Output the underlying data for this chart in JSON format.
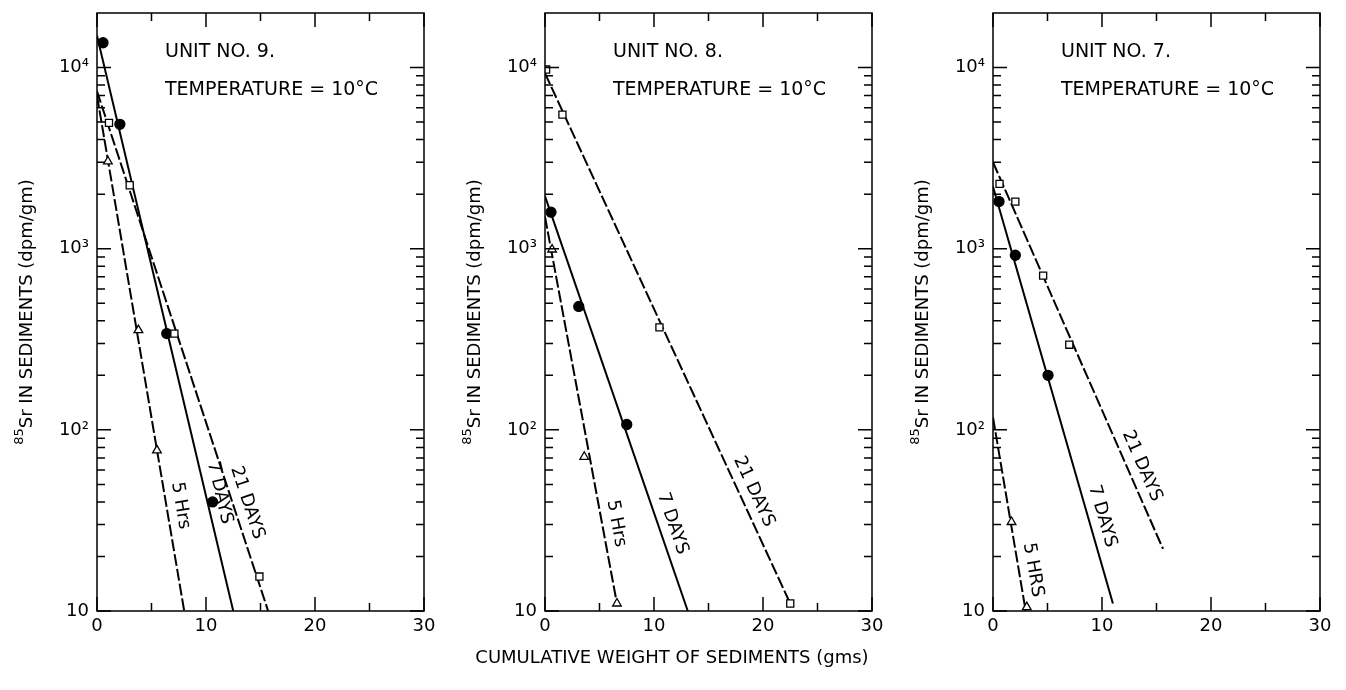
{
  "chart_data": [
    {
      "type": "scatter",
      "title": "UNIT NO. 9.",
      "subtitle": "TEMPERATURE = 10°C",
      "ylabel": "$^{85}$Sr IN SEDIMENTS (dpm/gm)",
      "log": "y",
      "grid": false,
      "legend": false,
      "xlim": [
        0,
        30
      ],
      "ylim": [
        10,
        20000
      ],
      "xticks": [
        0,
        {
          "value": 5,
          "label": null
        },
        10,
        {
          "value": 15,
          "label": null
        },
        20,
        {
          "value": 25,
          "label": null
        },
        30
      ],
      "yticks": [
        {
          "value": 10,
          "label": "10"
        },
        {
          "value": 20,
          "label": null
        },
        {
          "value": 30,
          "label": null
        },
        {
          "value": 40,
          "label": null
        },
        {
          "value": 50,
          "label": null
        },
        {
          "value": 60,
          "label": null
        },
        {
          "value": 70,
          "label": null
        },
        {
          "value": 80,
          "label": null
        },
        {
          "value": 90,
          "label": null
        },
        {
          "value": 100,
          "label": "10²"
        },
        {
          "value": 200,
          "label": null
        },
        {
          "value": 300,
          "label": null
        },
        {
          "value": 400,
          "label": null
        },
        {
          "value": 500,
          "label": null
        },
        {
          "value": 600,
          "label": null
        },
        {
          "value": 700,
          "label": null
        },
        {
          "value": 800,
          "label": null
        },
        {
          "value": 900,
          "label": null
        },
        {
          "value": 1000,
          "label": "10³"
        },
        {
          "value": 2000,
          "label": null
        },
        {
          "value": 3000,
          "label": null
        },
        {
          "value": 4000,
          "label": null
        },
        {
          "value": 5000,
          "label": null
        },
        {
          "value": 6000,
          "label": null
        },
        {
          "value": 7000,
          "label": null
        },
        {
          "value": 8000,
          "label": null
        },
        {
          "value": 9000,
          "label": null
        },
        {
          "value": 10000,
          "label": "10⁴"
        }
      ],
      "series": [
        {
          "type": "line",
          "name": "21 DAYS",
          "color": "#000000",
          "marker": "none",
          "line_style": "dashed",
          "x": [
            0,
            15.7
          ],
          "values": [
            7400,
            10
          ]
        },
        {
          "type": "line",
          "name": "7 DAYS",
          "color": "#000000",
          "marker": "none",
          "line_style": "solid",
          "x": [
            0,
            12.5
          ],
          "values": [
            15000,
            10
          ]
        },
        {
          "type": "line",
          "name": "5 Hrs",
          "color": "#000000",
          "marker": "none",
          "line_style": "dashed",
          "x": [
            0,
            8.0
          ],
          "values": [
            7000,
            10
          ]
        },
        {
          "color": "#000000",
          "marker": "square",
          "x": [
            1.1,
            3.0,
            7.1,
            14.9
          ],
          "values": [
            4950,
            2240,
            340,
            15.5
          ]
        },
        {
          "color": "#000000",
          "marker": "circle",
          "x": [
            0.55,
            2.1,
            6.4,
            10.6
          ],
          "values": [
            13700,
            4860,
            340,
            40
          ]
        },
        {
          "color": "#000000",
          "marker": "triangle",
          "x": [
            1.0,
            3.8,
            5.5
          ],
          "values": [
            3030,
            355,
            77
          ]
        }
      ]
    },
    {
      "type": "scatter",
      "title": "UNIT NO. 8.",
      "subtitle": "TEMPERATURE = 10°C",
      "xlabel": "CUMULATIVE WEIGHT OF SEDIMENTS (gms)",
      "ylabel": "$^{85}$Sr IN SEDIMENTS (dpm/gm)",
      "log": "y",
      "grid": false,
      "legend": false,
      "xlim": [
        0,
        30
      ],
      "ylim": [
        10,
        20000
      ],
      "xticks": [
        0,
        {
          "value": 5,
          "label": null
        },
        10,
        {
          "value": 15,
          "label": null
        },
        20,
        {
          "value": 25,
          "label": null
        },
        30
      ],
      "yticks": [
        {
          "value": 10,
          "label": "10"
        },
        {
          "value": 20,
          "label": null
        },
        {
          "value": 30,
          "label": null
        },
        {
          "value": 40,
          "label": null
        },
        {
          "value": 50,
          "label": null
        },
        {
          "value": 60,
          "label": null
        },
        {
          "value": 70,
          "label": null
        },
        {
          "value": 80,
          "label": null
        },
        {
          "value": 90,
          "label": null
        },
        {
          "value": 100,
          "label": "10²"
        },
        {
          "value": 200,
          "label": null
        },
        {
          "value": 300,
          "label": null
        },
        {
          "value": 400,
          "label": null
        },
        {
          "value": 500,
          "label": null
        },
        {
          "value": 600,
          "label": null
        },
        {
          "value": 700,
          "label": null
        },
        {
          "value": 800,
          "label": null
        },
        {
          "value": 900,
          "label": null
        },
        {
          "value": 1000,
          "label": "10³"
        },
        {
          "value": 2000,
          "label": null
        },
        {
          "value": 3000,
          "label": null
        },
        {
          "value": 4000,
          "label": null
        },
        {
          "value": 5000,
          "label": null
        },
        {
          "value": 6000,
          "label": null
        },
        {
          "value": 7000,
          "label": null
        },
        {
          "value": 8000,
          "label": null
        },
        {
          "value": 9000,
          "label": null
        },
        {
          "value": 10000,
          "label": "10⁴"
        }
      ],
      "series": [
        {
          "type": "line",
          "name": "21 DAYS",
          "color": "#000000",
          "marker": "none",
          "line_style": "dashed",
          "x": [
            0,
            22.5
          ],
          "values": [
            9300,
            11
          ]
        },
        {
          "type": "line",
          "name": "7 DAYS",
          "color": "#000000",
          "marker": "none",
          "line_style": "solid",
          "x": [
            0,
            13.1
          ],
          "values": [
            1950,
            10
          ]
        },
        {
          "type": "line",
          "name": "5 Hrs",
          "color": "#000000",
          "marker": "none",
          "line_style": "dashed",
          "x": [
            0,
            6.6
          ],
          "values": [
            1500,
            11
          ]
        },
        {
          "color": "#000000",
          "marker": "square",
          "x": [
            0.1,
            1.6,
            10.5,
            22.5
          ],
          "values": [
            9750,
            5500,
            368,
            11
          ]
        },
        {
          "color": "#000000",
          "marker": "circle",
          "x": [
            0.55,
            3.1,
            7.5
          ],
          "values": [
            1590,
            480,
            107
          ]
        },
        {
          "color": "#000000",
          "marker": "triangle",
          "x": [
            0.65,
            3.6,
            6.6
          ],
          "values": [
            990,
            71,
            11
          ]
        }
      ]
    },
    {
      "type": "scatter",
      "title": "UNIT NO. 7.",
      "subtitle": "TEMPERATURE = 10°C",
      "ylabel": "$^{85}$Sr IN SEDIMENTS (dpm/gm)",
      "log": "y",
      "grid": false,
      "legend": false,
      "xlim": [
        0,
        30
      ],
      "ylim": [
        10,
        20000
      ],
      "xticks": [
        0,
        {
          "value": 5,
          "label": null
        },
        10,
        {
          "value": 15,
          "label": null
        },
        20,
        {
          "value": 25,
          "label": null
        },
        30
      ],
      "yticks": [
        {
          "value": 10,
          "label": "10"
        },
        {
          "value": 20,
          "label": null
        },
        {
          "value": 30,
          "label": null
        },
        {
          "value": 40,
          "label": null
        },
        {
          "value": 50,
          "label": null
        },
        {
          "value": 60,
          "label": null
        },
        {
          "value": 70,
          "label": null
        },
        {
          "value": 80,
          "label": null
        },
        {
          "value": 90,
          "label": null
        },
        {
          "value": 100,
          "label": "10²"
        },
        {
          "value": 200,
          "label": null
        },
        {
          "value": 300,
          "label": null
        },
        {
          "value": 400,
          "label": null
        },
        {
          "value": 500,
          "label": null
        },
        {
          "value": 600,
          "label": null
        },
        {
          "value": 700,
          "label": null
        },
        {
          "value": 800,
          "label": null
        },
        {
          "value": 900,
          "label": null
        },
        {
          "value": 1000,
          "label": "10³"
        },
        {
          "value": 2000,
          "label": null
        },
        {
          "value": 3000,
          "label": null
        },
        {
          "value": 4000,
          "label": null
        },
        {
          "value": 5000,
          "label": null
        },
        {
          "value": 6000,
          "label": null
        },
        {
          "value": 7000,
          "label": null
        },
        {
          "value": 8000,
          "label": null
        },
        {
          "value": 9000,
          "label": null
        },
        {
          "value": 10000,
          "label": "10⁴"
        }
      ],
      "series": [
        {
          "type": "line",
          "name": "21 DAYS",
          "color": "#000000",
          "marker": "none",
          "line_style": "dashed",
          "x": [
            0,
            15.6
          ],
          "values": [
            3000,
            22
          ]
        },
        {
          "type": "line",
          "name": "7 DAYS",
          "color": "#000000",
          "marker": "none",
          "line_style": "solid",
          "x": [
            0,
            11.0
          ],
          "values": [
            2200,
            11
          ]
        },
        {
          "type": "line",
          "name": "5 HRS",
          "color": "#000000",
          "marker": "none",
          "line_style": "dashed",
          "x": [
            0,
            3.0
          ],
          "values": [
            117,
            10
          ]
        },
        {
          "color": "#000000",
          "marker": "square",
          "x": [
            0.6,
            2.05,
            4.6,
            7.0
          ],
          "values": [
            2280,
            1820,
            710,
            295
          ]
        },
        {
          "color": "#000000",
          "marker": "circle",
          "x": [
            0.55,
            2.05,
            5.05
          ],
          "values": [
            1820,
            920,
            200
          ]
        },
        {
          "color": "#000000",
          "marker": "triangle",
          "x": [
            1.7,
            3.1
          ],
          "values": [
            31,
            10.5
          ]
        }
      ]
    }
  ]
}
